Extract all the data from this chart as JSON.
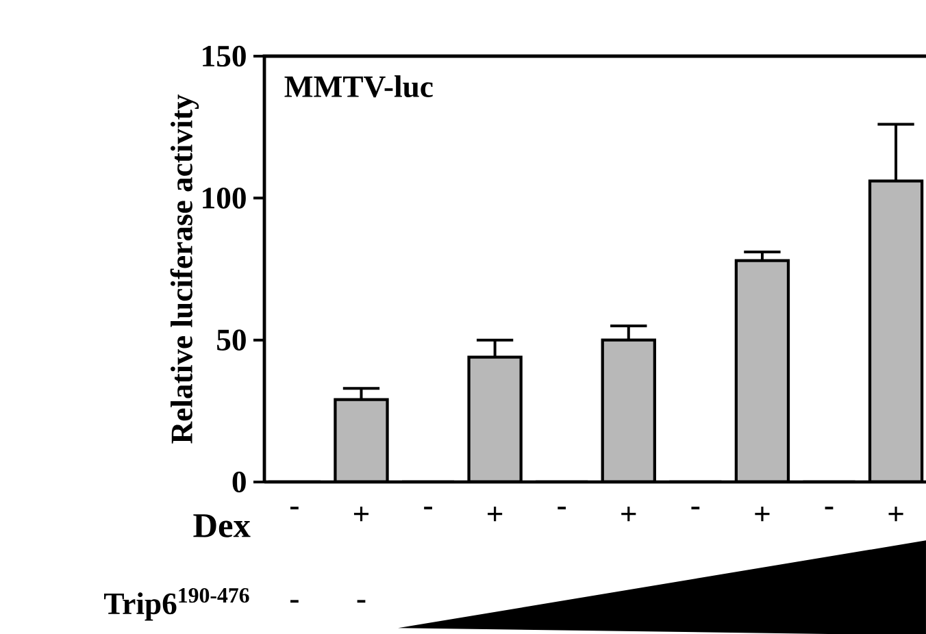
{
  "chart_data": {
    "type": "bar",
    "title": "MMTV-luc",
    "ylabel": "Relative luciferase activity",
    "xlabel": "Dex",
    "categories": [
      "-",
      "+",
      "-",
      "+",
      "-",
      "+",
      "-",
      "+",
      "-",
      "+"
    ],
    "values": [
      0,
      29,
      0,
      44,
      0,
      50,
      0,
      78,
      0,
      106
    ],
    "errors": [
      null,
      4,
      null,
      6,
      null,
      5,
      null,
      3,
      null,
      20
    ],
    "colors": [
      "#000000",
      "#b8b8b8",
      "#000000",
      "#b8b8b8",
      "#000000",
      "#b8b8b8",
      "#000000",
      "#b8b8b8",
      "#000000",
      "#b8b8b8"
    ],
    "ylim": [
      0,
      150
    ],
    "yticks": [
      0,
      50,
      100,
      150
    ],
    "grid": false,
    "annotations": [
      "Trip6$^{190-476}$",
      "-",
      "-"
    ]
  }
}
